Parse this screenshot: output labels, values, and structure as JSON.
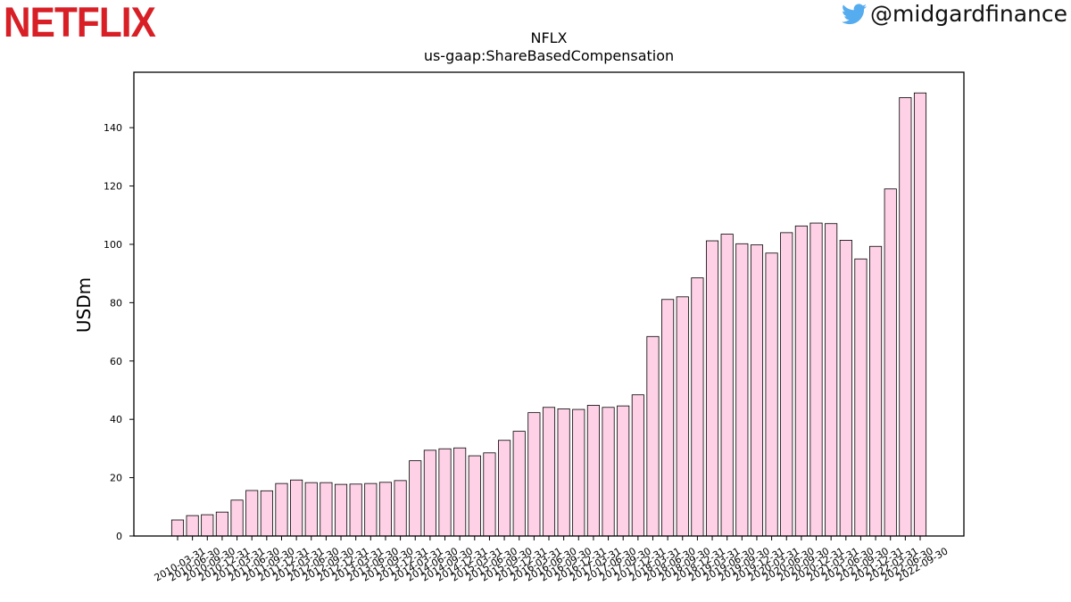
{
  "branding": {
    "logo_text": "NETFLIX",
    "logo_color": "#d81f26",
    "handle": "@midgardfinance",
    "handle_icon": "twitter-bird-icon",
    "icon_color": "#55acee"
  },
  "chart_data": {
    "type": "bar",
    "title": "NFLX",
    "subtitle": "us-gaap:ShareBasedCompensation",
    "xlabel": "",
    "ylabel": "USDm",
    "ylim": [
      0,
      159
    ],
    "yticks": [
      0,
      20,
      40,
      60,
      80,
      100,
      120,
      140
    ],
    "bar_color": "#ffd1e6",
    "edge_color": "#000000",
    "grid": false,
    "categories": [
      "2010-03-31",
      "2010-06-30",
      "2010-09-30",
      "2010-12-31",
      "2011-03-31",
      "2011-06-30",
      "2011-09-30",
      "2011-12-31",
      "2012-03-31",
      "2012-06-30",
      "2012-09-30",
      "2012-12-31",
      "2013-03-31",
      "2013-06-30",
      "2013-09-30",
      "2013-12-31",
      "2014-03-31",
      "2014-06-30",
      "2014-09-30",
      "2014-12-31",
      "2015-03-31",
      "2015-06-30",
      "2015-09-30",
      "2015-12-31",
      "2016-03-31",
      "2016-06-30",
      "2016-09-30",
      "2016-12-31",
      "2017-03-31",
      "2017-06-30",
      "2017-09-30",
      "2017-12-31",
      "2018-03-31",
      "2018-06-30",
      "2018-09-30",
      "2018-12-31",
      "2019-03-31",
      "2019-06-30",
      "2019-09-30",
      "2019-12-31",
      "2020-03-31",
      "2020-06-30",
      "2020-09-30",
      "2020-12-31",
      "2021-03-31",
      "2021-06-30",
      "2021-09-30",
      "2021-12-31",
      "2022-03-31",
      "2022-06-30",
      "2022-09-30"
    ],
    "values": [
      5.5,
      7.0,
      7.3,
      8.2,
      12.3,
      15.6,
      15.5,
      18.0,
      19.2,
      18.3,
      18.3,
      17.7,
      17.8,
      18.0,
      18.4,
      19.0,
      25.8,
      29.4,
      29.9,
      30.2,
      27.5,
      28.5,
      32.8,
      35.9,
      42.3,
      44.1,
      43.6,
      43.4,
      44.8,
      44.1,
      44.6,
      48.4,
      68.4,
      81.1,
      82.0,
      88.5,
      101.2,
      103.5,
      100.2,
      99.8,
      97.0,
      104.0,
      106.3,
      107.3,
      107.1,
      101.4,
      95.0,
      99.3,
      119.0,
      150.3,
      151.9
    ]
  }
}
